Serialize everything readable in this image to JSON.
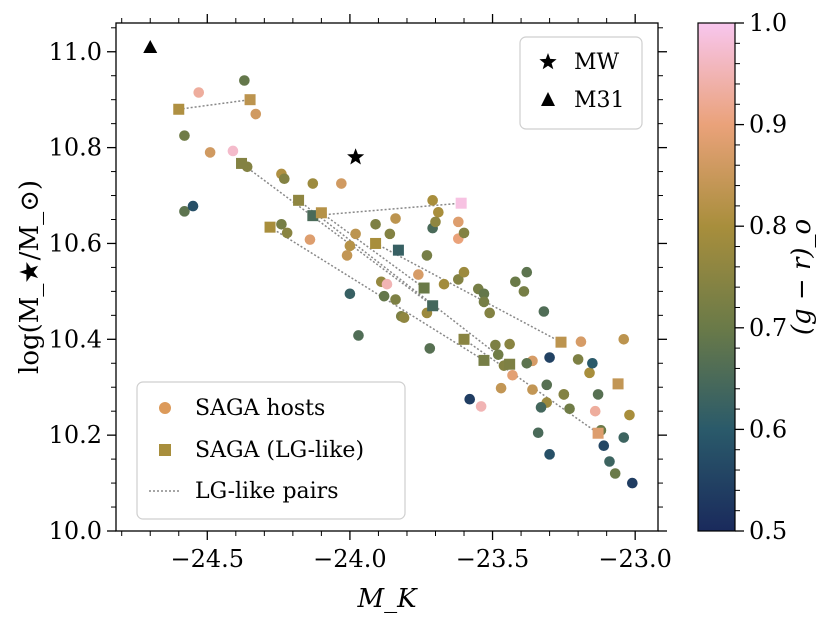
{
  "chart_data": {
    "type": "scatter",
    "xlabel": "M_K",
    "ylabel": "log(M_★/M_⊙)",
    "xlim": [
      -24.82,
      -22.92
    ],
    "ylim": [
      10.0,
      11.06
    ],
    "xticks": [
      -24.5,
      -24.0,
      -23.5,
      -23.0
    ],
    "xtick_labels": [
      "−24.5",
      "−24.0",
      "−23.5",
      "−23.0"
    ],
    "yticks": [
      10.0,
      10.2,
      10.4,
      10.6,
      10.8,
      11.0
    ],
    "ytick_labels": [
      "10.0",
      "10.2",
      "10.4",
      "10.6",
      "10.8",
      "11.0"
    ],
    "colorbar": {
      "label": "(g − r)_o",
      "range": [
        0.5,
        1.0
      ],
      "ticks": [
        0.5,
        0.6,
        0.7,
        0.8,
        0.9,
        1.0
      ],
      "tick_labels": [
        "0.5",
        "0.6",
        "0.7",
        "0.8",
        "0.9",
        "1.0"
      ],
      "colors": [
        "#1a2a5c",
        "#2a5a6a",
        "#6a7a48",
        "#a88e3c",
        "#eaa27a",
        "#f8c6ee"
      ]
    },
    "references": [
      {
        "name": "MW",
        "marker": "star",
        "x": -23.98,
        "y": 10.78
      },
      {
        "name": "M31",
        "marker": "triangle",
        "x": -24.7,
        "y": 11.01
      }
    ],
    "hosts": {
      "name": "SAGA hosts",
      "points": [
        [
          -24.53,
          10.915,
          0.93
        ],
        [
          -24.37,
          10.94,
          0.69
        ],
        [
          -24.33,
          10.87,
          0.86
        ],
        [
          -24.58,
          10.825,
          0.71
        ],
        [
          -24.49,
          10.79,
          0.86
        ],
        [
          -24.41,
          10.793,
          0.97
        ],
        [
          -24.58,
          10.667,
          0.68
        ],
        [
          -24.55,
          10.678,
          0.58
        ],
        [
          -24.36,
          10.76,
          0.74
        ],
        [
          -24.24,
          10.745,
          0.81
        ],
        [
          -24.23,
          10.735,
          0.74
        ],
        [
          -24.13,
          10.725,
          0.78
        ],
        [
          -24.03,
          10.725,
          0.86
        ],
        [
          -24.14,
          10.608,
          0.88
        ],
        [
          -24.24,
          10.64,
          0.72
        ],
        [
          -24.22,
          10.622,
          0.75
        ],
        [
          -24.0,
          10.595,
          0.82
        ],
        [
          -23.98,
          10.62,
          0.83
        ],
        [
          -24.01,
          10.575,
          0.84
        ],
        [
          -24.0,
          10.495,
          0.62
        ],
        [
          -23.97,
          10.408,
          0.66
        ],
        [
          -23.91,
          10.64,
          0.73
        ],
        [
          -23.86,
          10.62,
          0.74
        ],
        [
          -23.84,
          10.652,
          0.83
        ],
        [
          -23.89,
          10.52,
          0.77
        ],
        [
          -23.87,
          10.515,
          0.95
        ],
        [
          -23.88,
          10.49,
          0.69
        ],
        [
          -23.84,
          10.483,
          0.73
        ],
        [
          -23.82,
          10.448,
          0.73
        ],
        [
          -23.81,
          10.445,
          0.76
        ],
        [
          -23.76,
          10.535,
          0.87
        ],
        [
          -23.73,
          10.455,
          0.78
        ],
        [
          -23.72,
          10.381,
          0.67
        ],
        [
          -23.73,
          10.575,
          0.72
        ],
        [
          -23.71,
          10.69,
          0.8
        ],
        [
          -23.71,
          10.632,
          0.65
        ],
        [
          -23.69,
          10.665,
          0.8
        ],
        [
          -23.62,
          10.645,
          0.88
        ],
        [
          -23.62,
          10.61,
          0.9
        ],
        [
          -23.6,
          10.622,
          0.74
        ],
        [
          -23.67,
          10.515,
          0.79
        ],
        [
          -23.62,
          10.525,
          0.74
        ],
        [
          -23.6,
          10.54,
          0.78
        ],
        [
          -23.55,
          10.505,
          0.72
        ],
        [
          -23.53,
          10.495,
          0.69
        ],
        [
          -23.53,
          10.478,
          0.72
        ],
        [
          -23.51,
          10.455,
          0.74
        ],
        [
          -23.49,
          10.388,
          0.73
        ],
        [
          -23.48,
          10.368,
          0.71
        ],
        [
          -23.46,
          10.345,
          0.74
        ],
        [
          -23.44,
          10.39,
          0.75
        ],
        [
          -23.43,
          10.325,
          0.89
        ],
        [
          -23.42,
          10.52,
          0.7
        ],
        [
          -23.38,
          10.54,
          0.68
        ],
        [
          -23.39,
          10.5,
          0.72
        ],
        [
          -23.36,
          10.355,
          0.87
        ],
        [
          -23.32,
          10.458,
          0.66
        ],
        [
          -23.31,
          10.305,
          0.67
        ],
        [
          -23.31,
          10.268,
          0.78
        ],
        [
          -23.38,
          10.35,
          0.68
        ],
        [
          -23.36,
          10.295,
          0.84
        ],
        [
          -23.33,
          10.258,
          0.64
        ],
        [
          -23.3,
          10.362,
          0.55
        ],
        [
          -23.25,
          10.285,
          0.77
        ],
        [
          -23.2,
          10.358,
          0.73
        ],
        [
          -23.19,
          10.395,
          0.87
        ],
        [
          -23.16,
          10.33,
          0.8
        ],
        [
          -23.15,
          10.35,
          0.6
        ],
        [
          -23.13,
          10.285,
          0.67
        ],
        [
          -23.14,
          10.25,
          0.93
        ],
        [
          -23.09,
          10.145,
          0.63
        ],
        [
          -23.07,
          10.12,
          0.7
        ],
        [
          -23.04,
          10.4,
          0.83
        ],
        [
          -23.04,
          10.195,
          0.63
        ],
        [
          -23.02,
          10.242,
          0.8
        ],
        [
          -23.01,
          10.1,
          0.54
        ],
        [
          -23.11,
          10.178,
          0.56
        ],
        [
          -23.12,
          10.21,
          0.7
        ],
        [
          -23.25,
          10.285,
          0.74
        ],
        [
          -23.23,
          10.255,
          0.71
        ],
        [
          -23.34,
          10.205,
          0.65
        ],
        [
          -23.3,
          10.16,
          0.58
        ],
        [
          -23.47,
          10.298,
          0.84
        ],
        [
          -23.54,
          10.26,
          0.95
        ],
        [
          -23.58,
          10.275,
          0.54
        ],
        [
          -23.7,
          10.645,
          0.76
        ]
      ]
    },
    "lg_like": {
      "name": "SAGA (LG-like)",
      "points": [
        [
          -24.6,
          10.88,
          0.81
        ],
        [
          -24.35,
          10.9,
          0.83
        ],
        [
          -24.38,
          10.767,
          0.74
        ],
        [
          -24.18,
          10.69,
          0.76
        ],
        [
          -24.13,
          10.658,
          0.65
        ],
        [
          -24.1,
          10.664,
          0.82
        ],
        [
          -24.28,
          10.634,
          0.8
        ],
        [
          -23.91,
          10.6,
          0.8
        ],
        [
          -23.83,
          10.586,
          0.62
        ],
        [
          -23.74,
          10.507,
          0.7
        ],
        [
          -23.71,
          10.47,
          0.64
        ],
        [
          -23.61,
          10.684,
          0.99
        ],
        [
          -23.6,
          10.4,
          0.75
        ],
        [
          -23.53,
          10.356,
          0.72
        ],
        [
          -23.44,
          10.348,
          0.73
        ],
        [
          -23.26,
          10.394,
          0.83
        ],
        [
          -23.13,
          10.204,
          0.88
        ],
        [
          -23.06,
          10.307,
          0.84
        ]
      ]
    },
    "pairs": {
      "name": "LG-like pairs",
      "segments": [
        [
          [
            -24.6,
            10.88
          ],
          [
            -24.35,
            10.9
          ]
        ],
        [
          [
            -24.38,
            10.767
          ],
          [
            -23.71,
            10.47
          ]
        ],
        [
          [
            -24.18,
            10.69
          ],
          [
            -23.44,
            10.348
          ]
        ],
        [
          [
            -24.13,
            10.658
          ],
          [
            -23.61,
            10.684
          ]
        ],
        [
          [
            -24.1,
            10.664
          ],
          [
            -23.74,
            10.507
          ]
        ],
        [
          [
            -24.28,
            10.634
          ],
          [
            -23.53,
            10.356
          ]
        ],
        [
          [
            -23.91,
            10.6
          ],
          [
            -23.26,
            10.394
          ]
        ],
        [
          [
            -23.6,
            10.4
          ],
          [
            -23.13,
            10.204
          ]
        ]
      ]
    }
  }
}
